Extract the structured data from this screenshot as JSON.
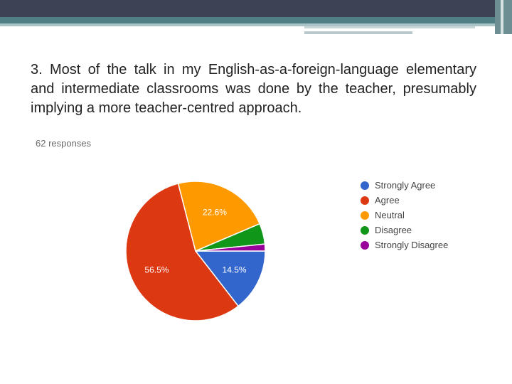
{
  "question": "3. Most of the talk in my English-as-a-foreign-language elementary and intermediate classrooms was done by the teacher, presumably implying a more teacher-centred approach.",
  "responses_label": "62 responses",
  "chart_data": {
    "type": "pie",
    "categories": [
      "Strongly Agree",
      "Agree",
      "Neutral",
      "Disagree",
      "Strongly Disagree"
    ],
    "values": [
      14.5,
      56.5,
      22.6,
      4.8,
      1.6
    ],
    "colors": [
      "#3366cc",
      "#dc3912",
      "#ff9900",
      "#109618",
      "#990099"
    ],
    "data_labels": [
      "14.5%",
      "56.5%",
      "22.6%",
      "",
      ""
    ],
    "start_angle_deg": 90,
    "direction": "clockwise",
    "legend_position": "right"
  }
}
